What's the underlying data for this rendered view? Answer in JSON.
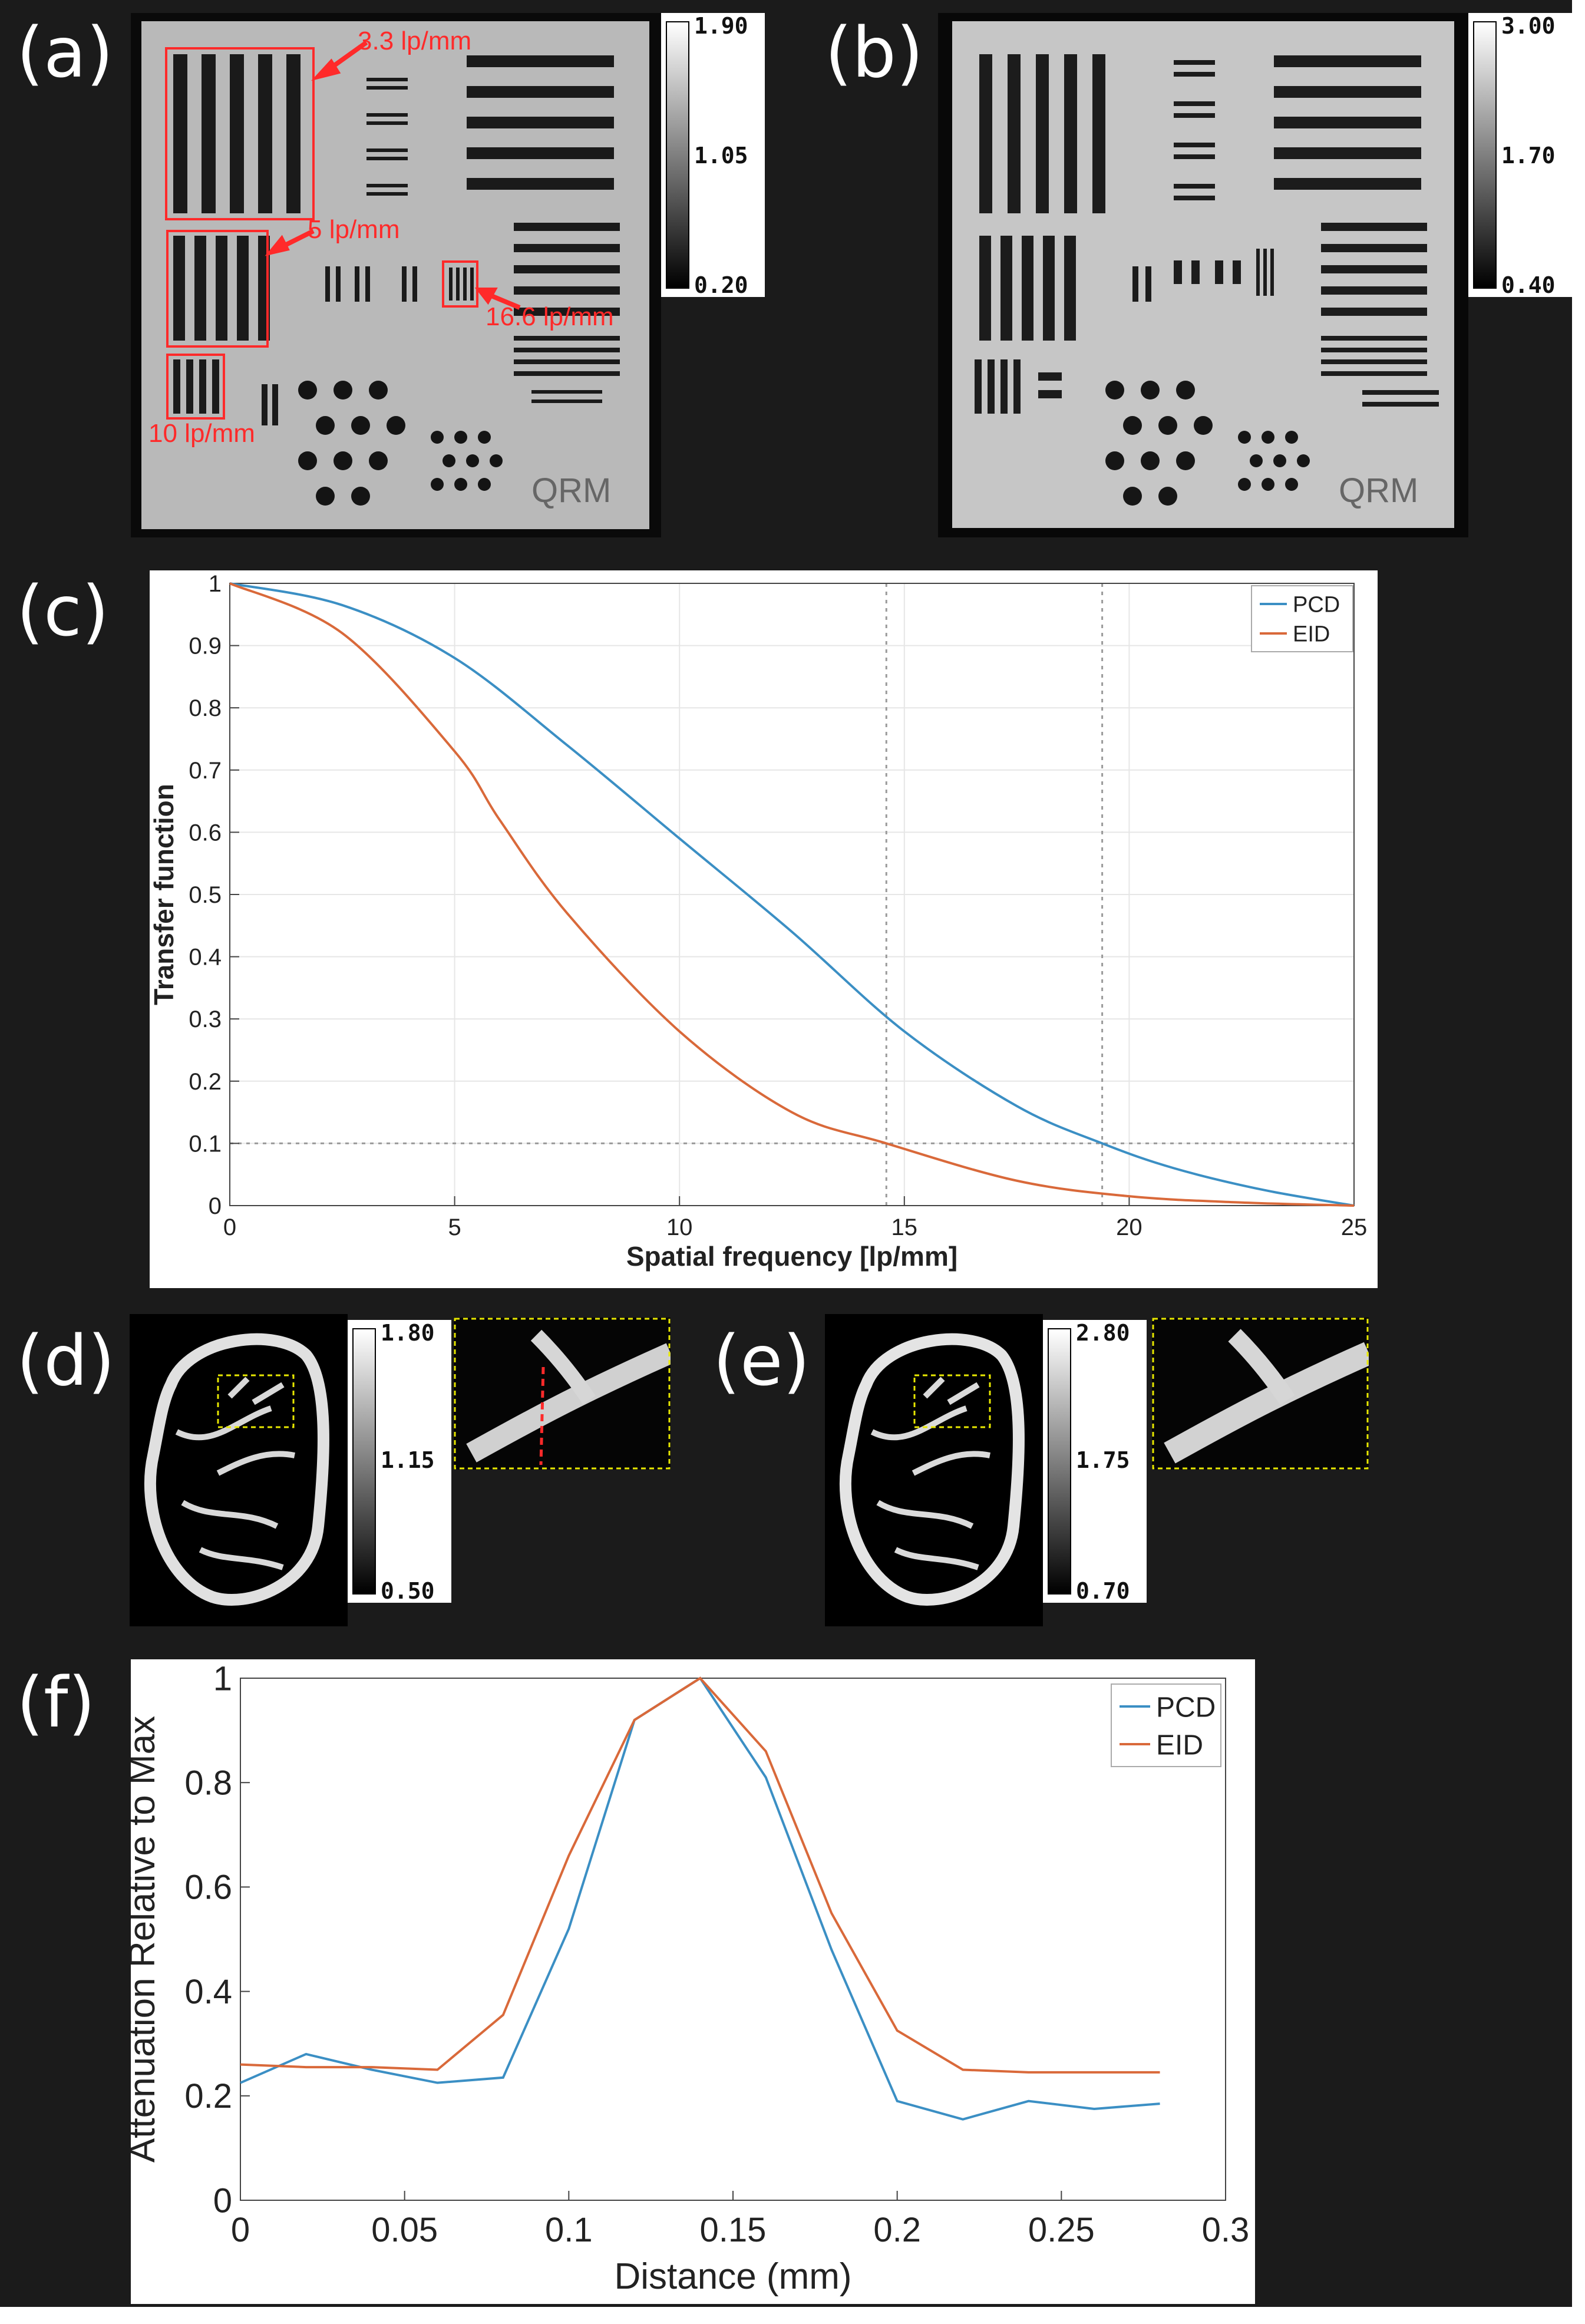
{
  "panels": {
    "a": {
      "label": "(a)",
      "colorbar": {
        "max": "1.90",
        "mid": "1.05",
        "min": "0.20"
      },
      "annotations": [
        "3.3 lp/mm",
        "5 lp/mm",
        "16.6 lp/mm",
        "10 lp/mm"
      ],
      "phantom_text": "QRM"
    },
    "b": {
      "label": "(b)",
      "colorbar": {
        "max": "3.00",
        "mid": "1.70",
        "min": "0.40"
      },
      "phantom_text": "QRM"
    },
    "c": {
      "label": "(c)"
    },
    "d": {
      "label": "(d)",
      "colorbar": {
        "max": "1.80",
        "mid": "1.15",
        "min": "0.50"
      }
    },
    "e": {
      "label": "(e)",
      "colorbar": {
        "max": "2.80",
        "mid": "1.75",
        "min": "0.70"
      }
    },
    "f": {
      "label": "(f)"
    }
  },
  "colors": {
    "PCD": "#3b8fc4",
    "EID": "#d9693a",
    "annotation": "#ff2a2a",
    "roi": "#e8e800"
  },
  "chart_data": [
    {
      "id": "c",
      "type": "line",
      "title": "",
      "xlabel": "Spatial frequency [lp/mm]",
      "ylabel": "Transfer function",
      "xlim": [
        0,
        25
      ],
      "ylim": [
        0,
        1
      ],
      "xticks": [
        0,
        5,
        10,
        15,
        20,
        25
      ],
      "yticks": [
        0,
        0.1,
        0.2,
        0.3,
        0.4,
        0.5,
        0.6,
        0.7,
        0.8,
        0.9,
        1
      ],
      "grid": true,
      "legend": "top-right",
      "reference_lines": {
        "y": 0.1,
        "x": [
          14.6,
          19.4
        ]
      },
      "series": [
        {
          "name": "PCD",
          "x": [
            0,
            2.5,
            5,
            7.5,
            10,
            12.5,
            15,
            17.5,
            19.4,
            21,
            23,
            25
          ],
          "values": [
            1,
            0.965,
            0.88,
            0.74,
            0.59,
            0.44,
            0.28,
            0.16,
            0.1,
            0.06,
            0.025,
            0
          ]
        },
        {
          "name": "EID",
          "x": [
            0,
            2.5,
            5,
            6,
            7.5,
            10,
            12.5,
            14.6,
            17.5,
            20,
            22.5,
            25
          ],
          "values": [
            1,
            0.92,
            0.73,
            0.62,
            0.47,
            0.28,
            0.15,
            0.1,
            0.04,
            0.015,
            0.005,
            0
          ]
        }
      ]
    },
    {
      "id": "f",
      "type": "line",
      "title": "",
      "xlabel": "Distance (mm)",
      "ylabel": "Attenuation Relative to Max",
      "xlim": [
        0,
        0.3
      ],
      "ylim": [
        0,
        1
      ],
      "xticks": [
        "0",
        "0.05",
        "0.1",
        "0.15",
        "0.2",
        "0.25",
        "0.3"
      ],
      "yticks": [
        "0",
        "0.2",
        "0.4",
        "0.6",
        "0.8",
        "1"
      ],
      "grid": false,
      "legend": "top-right",
      "series": [
        {
          "name": "PCD",
          "x": [
            0,
            0.02,
            0.04,
            0.06,
            0.08,
            0.1,
            0.12,
            0.14,
            0.16,
            0.18,
            0.2,
            0.22,
            0.24,
            0.26,
            0.28
          ],
          "values": [
            0.225,
            0.28,
            0.25,
            0.225,
            0.235,
            0.52,
            0.92,
            1.0,
            0.81,
            0.48,
            0.19,
            0.155,
            0.19,
            0.175,
            0.185
          ]
        },
        {
          "name": "EID",
          "x": [
            0,
            0.02,
            0.04,
            0.06,
            0.08,
            0.1,
            0.12,
            0.14,
            0.16,
            0.18,
            0.2,
            0.22,
            0.24,
            0.26,
            0.28
          ],
          "values": [
            0.26,
            0.255,
            0.255,
            0.25,
            0.355,
            0.66,
            0.92,
            1.0,
            0.86,
            0.55,
            0.325,
            0.25,
            0.245,
            0.245,
            0.245
          ]
        }
      ]
    }
  ]
}
